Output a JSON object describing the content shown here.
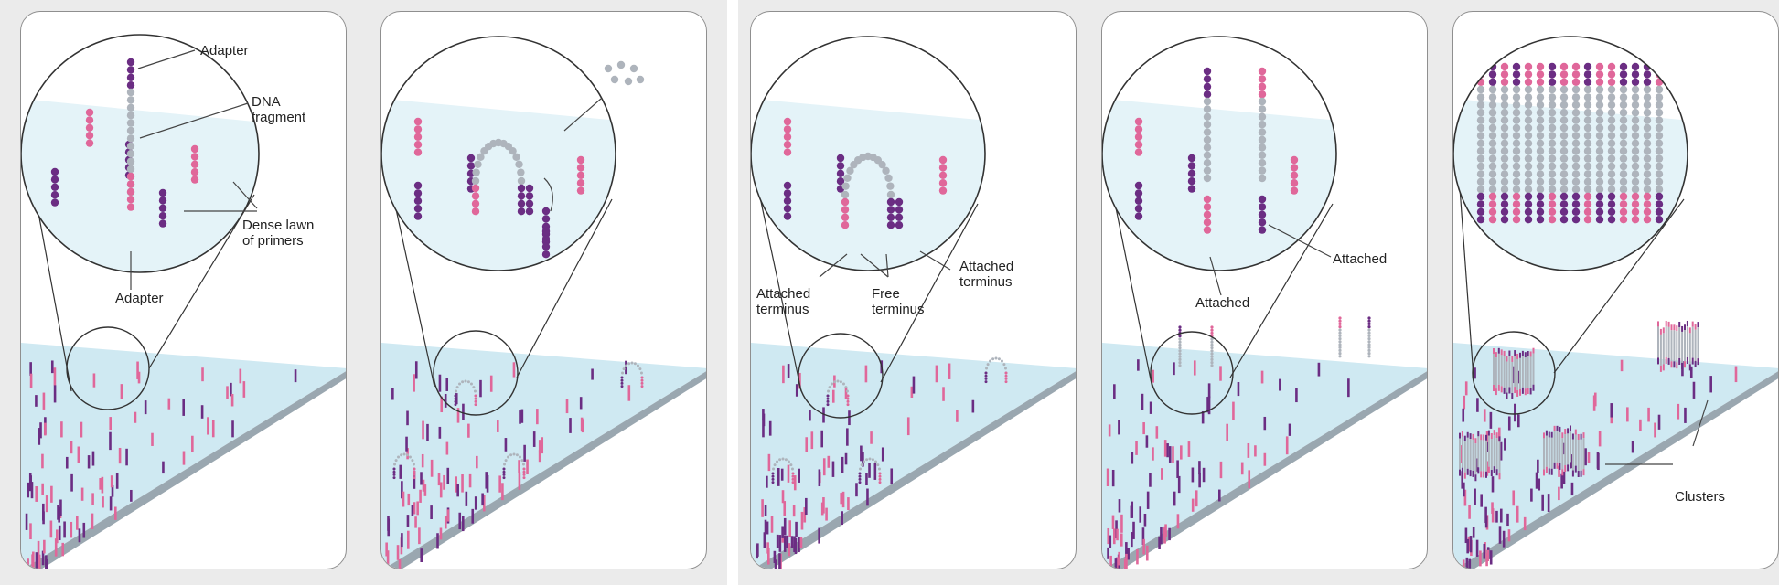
{
  "colors": {
    "purple": "#6b2d83",
    "pink": "#e0679a",
    "grey": "#aeb4bc",
    "slide": "#cfe9f2",
    "slideEdge": "#9aa7b0",
    "circleFill": "#e4f3f8"
  },
  "panels": [
    {
      "labels": [
        {
          "name": "label-adapter-top",
          "text": "Adapter"
        },
        {
          "name": "label-dna-fragment",
          "text": "DNA\nfragment"
        },
        {
          "name": "label-dense-lawn",
          "text": "Dense lawn\nof primers"
        },
        {
          "name": "label-adapter-bottom",
          "text": "Adapter"
        }
      ]
    },
    {
      "labels": []
    },
    {
      "labels": [
        {
          "name": "label-attached-terminus-left",
          "text": "Attached\nterminus"
        },
        {
          "name": "label-free-terminus",
          "text": "Free\nterminus"
        },
        {
          "name": "label-attached-terminus-right",
          "text": "Attached\nterminus"
        }
      ]
    },
    {
      "labels": [
        {
          "name": "label-attached-right",
          "text": "Attached"
        },
        {
          "name": "label-attached-left",
          "text": "Attached"
        }
      ]
    },
    {
      "labels": [
        {
          "name": "label-clusters",
          "text": "Clusters"
        }
      ]
    }
  ]
}
